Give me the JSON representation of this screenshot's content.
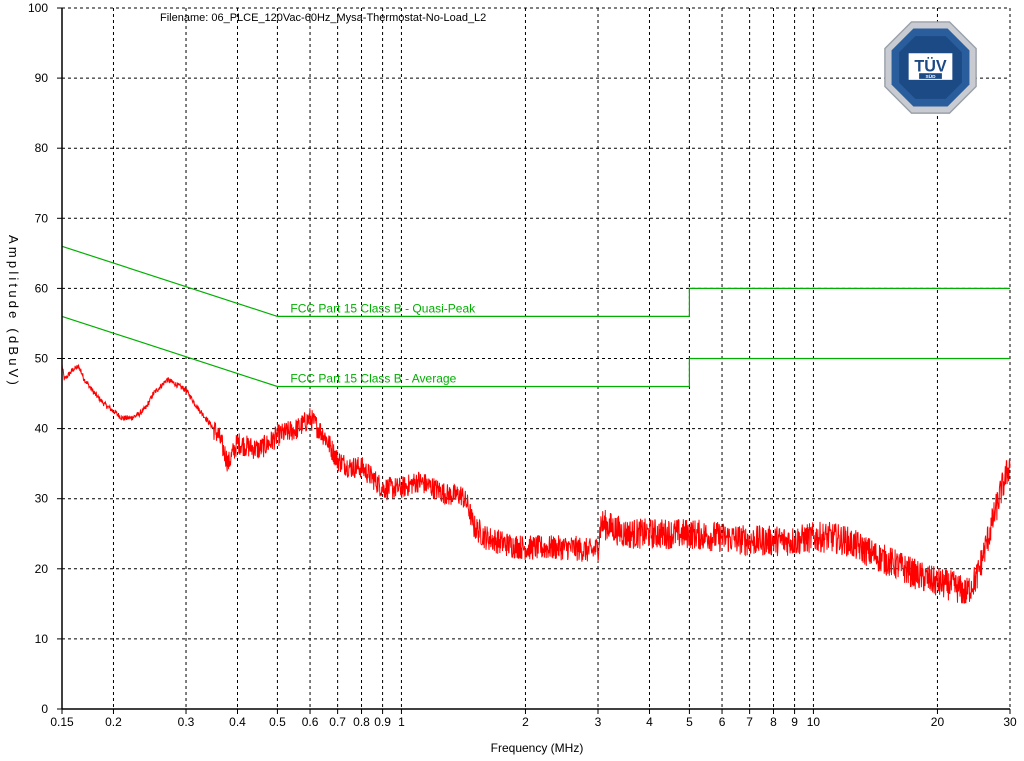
{
  "header": {
    "filename": "Filename: 06_PLCE_120Vac-60Hz_Mysa-Thermostat-No-Load_L2"
  },
  "logo": {
    "text": "TÜV",
    "subtext": "SÜD"
  },
  "chart_data": {
    "type": "line",
    "xlabel": "Frequency (MHz)",
    "ylabel": "Amplitude (dBuV)",
    "xscale": "log",
    "xlim": [
      0.15,
      30
    ],
    "ylim": [
      0,
      100
    ],
    "grid": true,
    "x_ticks": [
      {
        "v": 0.15,
        "label": "0.15"
      },
      {
        "v": 0.2,
        "label": "0.2"
      },
      {
        "v": 0.3,
        "label": "0.3"
      },
      {
        "v": 0.4,
        "label": "0.4"
      },
      {
        "v": 0.5,
        "label": "0.5"
      },
      {
        "v": 0.6,
        "label": "0.6"
      },
      {
        "v": 0.7,
        "label": "0.7"
      },
      {
        "v": 0.8,
        "label": "0.8"
      },
      {
        "v": 0.9,
        "label": "0.9"
      },
      {
        "v": 1,
        "label": "1"
      },
      {
        "v": 2,
        "label": "2"
      },
      {
        "v": 3,
        "label": "3"
      },
      {
        "v": 4,
        "label": "4"
      },
      {
        "v": 5,
        "label": "5"
      },
      {
        "v": 6,
        "label": "6"
      },
      {
        "v": 7,
        "label": "7"
      },
      {
        "v": 8,
        "label": "8"
      },
      {
        "v": 9,
        "label": "9"
      },
      {
        "v": 10,
        "label": "10"
      },
      {
        "v": 20,
        "label": "20"
      },
      {
        "v": 30,
        "label": "30"
      }
    ],
    "y_ticks": [
      0,
      10,
      20,
      30,
      40,
      50,
      60,
      70,
      80,
      90,
      100
    ],
    "limit_lines": [
      {
        "name": "FCC Part 15 Class B - Quasi-Peak",
        "color": "#00b000",
        "points": [
          [
            0.15,
            66
          ],
          [
            0.5,
            56
          ],
          [
            5,
            56
          ],
          [
            5,
            60
          ],
          [
            30,
            60
          ]
        ]
      },
      {
        "name": "FCC Part 15 Class B - Average",
        "color": "#00b000",
        "points": [
          [
            0.15,
            56
          ],
          [
            0.5,
            46
          ],
          [
            5,
            46
          ],
          [
            5,
            50
          ],
          [
            30,
            50
          ]
        ]
      }
    ],
    "series": [
      {
        "color": "#ff0000",
        "points": [
          [
            0.15,
            49
          ],
          [
            0.152,
            47
          ],
          [
            0.16,
            48.5
          ],
          [
            0.165,
            48.8
          ],
          [
            0.17,
            47
          ],
          [
            0.18,
            45
          ],
          [
            0.19,
            43.5
          ],
          [
            0.2,
            42.5
          ],
          [
            0.21,
            41.5
          ],
          [
            0.22,
            41.5
          ],
          [
            0.23,
            42
          ],
          [
            0.24,
            43
          ],
          [
            0.25,
            45
          ],
          [
            0.26,
            46
          ],
          [
            0.27,
            47
          ],
          [
            0.28,
            46.5
          ],
          [
            0.3,
            45.5
          ],
          [
            0.32,
            43
          ],
          [
            0.34,
            41
          ],
          [
            0.36,
            39
          ],
          [
            0.38,
            35
          ],
          [
            0.4,
            38
          ],
          [
            0.42,
            37.5
          ],
          [
            0.45,
            37
          ],
          [
            0.48,
            38
          ],
          [
            0.5,
            39
          ],
          [
            0.53,
            39.5
          ],
          [
            0.56,
            40
          ],
          [
            0.6,
            41.5
          ],
          [
            0.65,
            39
          ],
          [
            0.7,
            35.5
          ],
          [
            0.75,
            34.5
          ],
          [
            0.8,
            34.5
          ],
          [
            0.85,
            33
          ],
          [
            0.9,
            31.5
          ],
          [
            0.95,
            31.5
          ],
          [
            1.0,
            31.5
          ],
          [
            1.05,
            32
          ],
          [
            1.1,
            32.5
          ],
          [
            1.2,
            31.5
          ],
          [
            1.3,
            30.5
          ],
          [
            1.4,
            30.5
          ],
          [
            1.45,
            29
          ],
          [
            1.5,
            26
          ],
          [
            1.6,
            24.5
          ],
          [
            1.8,
            23.5
          ],
          [
            2.0,
            23
          ],
          [
            2.3,
            23
          ],
          [
            2.6,
            23
          ],
          [
            2.9,
            22.5
          ],
          [
            3.0,
            23
          ],
          [
            3.05,
            26.5
          ],
          [
            3.2,
            26
          ],
          [
            3.5,
            25
          ],
          [
            4.0,
            25
          ],
          [
            4.5,
            25
          ],
          [
            5.0,
            25
          ],
          [
            6,
            24.5
          ],
          [
            7,
            24
          ],
          [
            8,
            24
          ],
          [
            9,
            24
          ],
          [
            10,
            24.5
          ],
          [
            11,
            24.5
          ],
          [
            12,
            24
          ],
          [
            13,
            23
          ],
          [
            14,
            22
          ],
          [
            16,
            20.5
          ],
          [
            18,
            19
          ],
          [
            20,
            18
          ],
          [
            22,
            17.5
          ],
          [
            23.5,
            16.5
          ],
          [
            25,
            19
          ],
          [
            27,
            26
          ],
          [
            28.5,
            31
          ],
          [
            30,
            35
          ]
        ]
      }
    ]
  }
}
